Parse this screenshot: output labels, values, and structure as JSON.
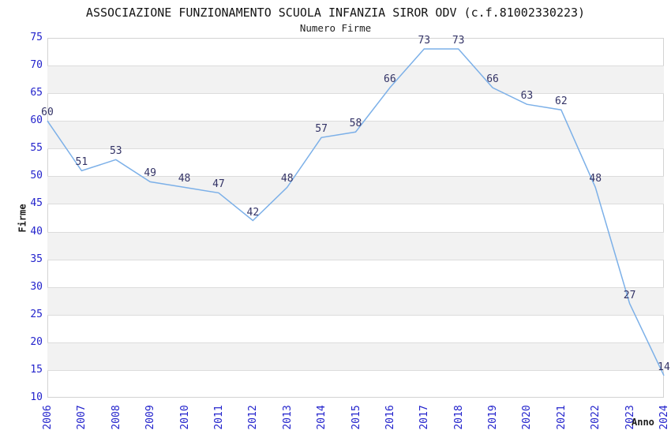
{
  "header": {
    "title": "ASSOCIAZIONE FUNZIONAMENTO SCUOLA INFANZIA SIROR ODV (c.f.81002330223)",
    "subtitle": "Numero Firme"
  },
  "chart_data": {
    "type": "line",
    "title": "ASSOCIAZIONE FUNZIONAMENTO SCUOLA INFANZIA SIROR ODV (c.f.81002330223)",
    "subtitle": "Numero Firme",
    "xlabel": "Anno",
    "ylabel": "Firme",
    "x": [
      "2006",
      "2007",
      "2008",
      "2009",
      "2010",
      "2011",
      "2012",
      "2013",
      "2014",
      "2015",
      "2016",
      "2017",
      "2018",
      "2019",
      "2020",
      "2021",
      "2022",
      "2023",
      "2024"
    ],
    "values": [
      60,
      51,
      53,
      49,
      48,
      47,
      42,
      48,
      57,
      58,
      66,
      73,
      73,
      66,
      63,
      62,
      48,
      27,
      14
    ],
    "ylim": [
      10,
      75
    ],
    "ytick_step": 5,
    "grid": true,
    "legend": "none",
    "colors": {
      "line": "#7cb0e8",
      "data_label": "#333366",
      "tick_label": "#2323cc",
      "band": "#f2f2f2",
      "gridline": "#dcdcdc",
      "plot_border": "#d3d3d3",
      "title": "#141414"
    }
  }
}
